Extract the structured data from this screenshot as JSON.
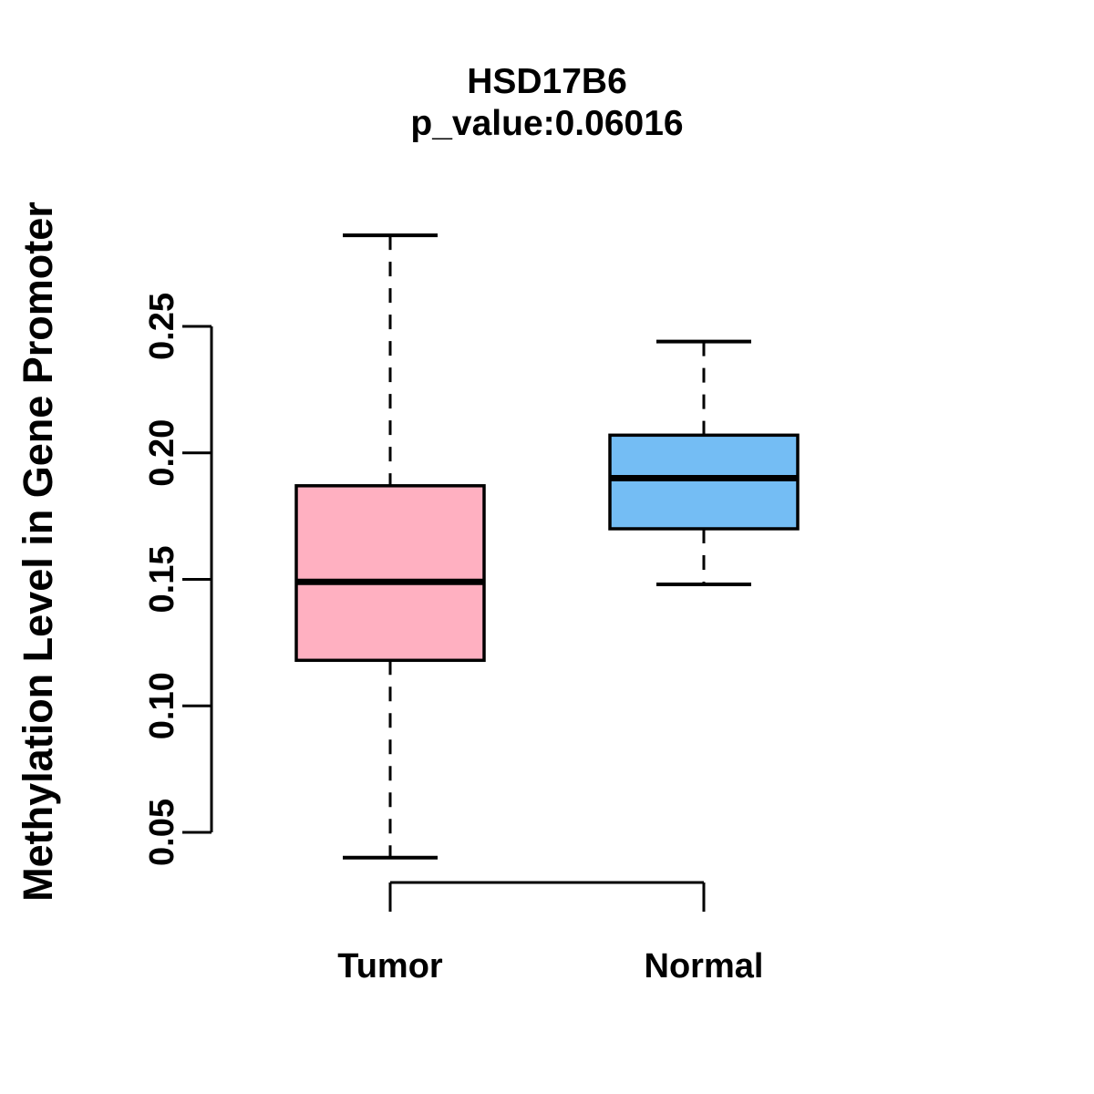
{
  "chart_data": {
    "type": "boxplot",
    "title": "HSD17B6",
    "subtitle": "p_value:0.06016",
    "ylabel": "Methylation Level in Gene Promoter",
    "xlabel": "",
    "categories": [
      "Tumor",
      "Normal"
    ],
    "series": [
      {
        "name": "Tumor",
        "box_color": "#FFB0C1",
        "whisker_low": 0.04,
        "q1": 0.118,
        "median": 0.149,
        "q3": 0.187,
        "whisker_high": 0.286
      },
      {
        "name": "Normal",
        "box_color": "#74BDF4",
        "whisker_low": 0.148,
        "q1": 0.17,
        "median": 0.19,
        "q3": 0.207,
        "whisker_high": 0.244
      }
    ],
    "yticks": [
      0.05,
      0.1,
      0.15,
      0.2,
      0.25
    ],
    "ylim": [
      0.04,
      0.29
    ],
    "grid": false,
    "legend": "none",
    "whisker_line_style": "dashed",
    "box_border_color": "#000000",
    "median_line_color": "#000000",
    "axis_color": "#000000",
    "text_color": "#000000",
    "background_color": "#FFFFFF"
  }
}
